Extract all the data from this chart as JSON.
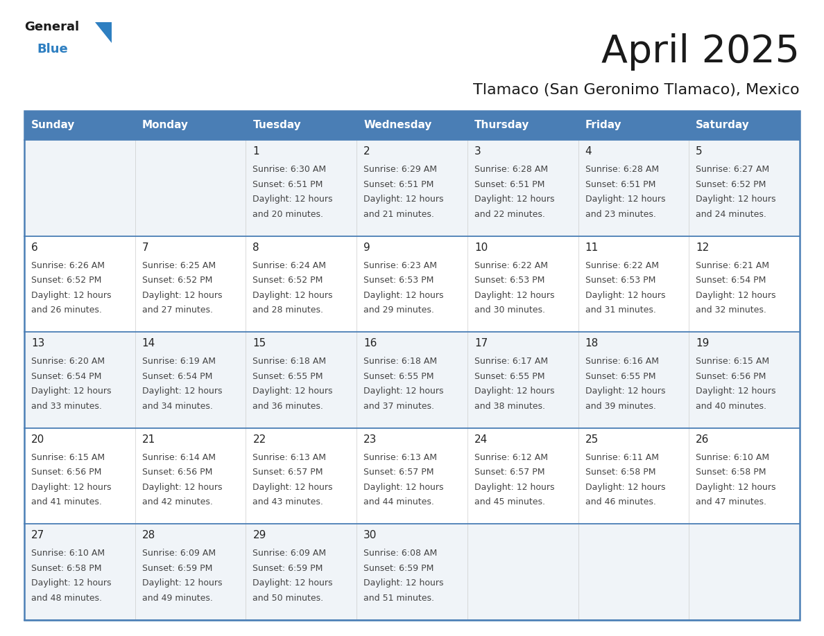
{
  "title": "April 2025",
  "subtitle": "Tlamaco (San Geronimo Tlamaco), Mexico",
  "header_color": "#4a7eb5",
  "header_text_color": "#ffffff",
  "cell_bg_odd": "#f0f4f8",
  "cell_bg_even": "#ffffff",
  "day_number_color": "#222222",
  "text_color": "#444444",
  "line_color": "#4a7eb5",
  "border_color": "#4a7eb5",
  "days_of_week": [
    "Sunday",
    "Monday",
    "Tuesday",
    "Wednesday",
    "Thursday",
    "Friday",
    "Saturday"
  ],
  "logo_color1": "#1a1a1a",
  "logo_color2": "#2e7fc1",
  "logo_triangle_color": "#2e7fc1",
  "calendar_data": [
    [
      {
        "day": "",
        "sunrise": "",
        "sunset": "",
        "daylight": ""
      },
      {
        "day": "",
        "sunrise": "",
        "sunset": "",
        "daylight": ""
      },
      {
        "day": "1",
        "sunrise": "6:30 AM",
        "sunset": "6:51 PM",
        "daylight": "20 minutes."
      },
      {
        "day": "2",
        "sunrise": "6:29 AM",
        "sunset": "6:51 PM",
        "daylight": "21 minutes."
      },
      {
        "day": "3",
        "sunrise": "6:28 AM",
        "sunset": "6:51 PM",
        "daylight": "22 minutes."
      },
      {
        "day": "4",
        "sunrise": "6:28 AM",
        "sunset": "6:51 PM",
        "daylight": "23 minutes."
      },
      {
        "day": "5",
        "sunrise": "6:27 AM",
        "sunset": "6:52 PM",
        "daylight": "24 minutes."
      }
    ],
    [
      {
        "day": "6",
        "sunrise": "6:26 AM",
        "sunset": "6:52 PM",
        "daylight": "26 minutes."
      },
      {
        "day": "7",
        "sunrise": "6:25 AM",
        "sunset": "6:52 PM",
        "daylight": "27 minutes."
      },
      {
        "day": "8",
        "sunrise": "6:24 AM",
        "sunset": "6:52 PM",
        "daylight": "28 minutes."
      },
      {
        "day": "9",
        "sunrise": "6:23 AM",
        "sunset": "6:53 PM",
        "daylight": "29 minutes."
      },
      {
        "day": "10",
        "sunrise": "6:22 AM",
        "sunset": "6:53 PM",
        "daylight": "30 minutes."
      },
      {
        "day": "11",
        "sunrise": "6:22 AM",
        "sunset": "6:53 PM",
        "daylight": "31 minutes."
      },
      {
        "day": "12",
        "sunrise": "6:21 AM",
        "sunset": "6:54 PM",
        "daylight": "32 minutes."
      }
    ],
    [
      {
        "day": "13",
        "sunrise": "6:20 AM",
        "sunset": "6:54 PM",
        "daylight": "33 minutes."
      },
      {
        "day": "14",
        "sunrise": "6:19 AM",
        "sunset": "6:54 PM",
        "daylight": "34 minutes."
      },
      {
        "day": "15",
        "sunrise": "6:18 AM",
        "sunset": "6:55 PM",
        "daylight": "36 minutes."
      },
      {
        "day": "16",
        "sunrise": "6:18 AM",
        "sunset": "6:55 PM",
        "daylight": "37 minutes."
      },
      {
        "day": "17",
        "sunrise": "6:17 AM",
        "sunset": "6:55 PM",
        "daylight": "38 minutes."
      },
      {
        "day": "18",
        "sunrise": "6:16 AM",
        "sunset": "6:55 PM",
        "daylight": "39 minutes."
      },
      {
        "day": "19",
        "sunrise": "6:15 AM",
        "sunset": "6:56 PM",
        "daylight": "40 minutes."
      }
    ],
    [
      {
        "day": "20",
        "sunrise": "6:15 AM",
        "sunset": "6:56 PM",
        "daylight": "41 minutes."
      },
      {
        "day": "21",
        "sunrise": "6:14 AM",
        "sunset": "6:56 PM",
        "daylight": "42 minutes."
      },
      {
        "day": "22",
        "sunrise": "6:13 AM",
        "sunset": "6:57 PM",
        "daylight": "43 minutes."
      },
      {
        "day": "23",
        "sunrise": "6:13 AM",
        "sunset": "6:57 PM",
        "daylight": "44 minutes."
      },
      {
        "day": "24",
        "sunrise": "6:12 AM",
        "sunset": "6:57 PM",
        "daylight": "45 minutes."
      },
      {
        "day": "25",
        "sunrise": "6:11 AM",
        "sunset": "6:58 PM",
        "daylight": "46 minutes."
      },
      {
        "day": "26",
        "sunrise": "6:10 AM",
        "sunset": "6:58 PM",
        "daylight": "47 minutes."
      }
    ],
    [
      {
        "day": "27",
        "sunrise": "6:10 AM",
        "sunset": "6:58 PM",
        "daylight": "48 minutes."
      },
      {
        "day": "28",
        "sunrise": "6:09 AM",
        "sunset": "6:59 PM",
        "daylight": "49 minutes."
      },
      {
        "day": "29",
        "sunrise": "6:09 AM",
        "sunset": "6:59 PM",
        "daylight": "50 minutes."
      },
      {
        "day": "30",
        "sunrise": "6:08 AM",
        "sunset": "6:59 PM",
        "daylight": "51 minutes."
      },
      {
        "day": "",
        "sunrise": "",
        "sunset": "",
        "daylight": ""
      },
      {
        "day": "",
        "sunrise": "",
        "sunset": "",
        "daylight": ""
      },
      {
        "day": "",
        "sunrise": "",
        "sunset": "",
        "daylight": ""
      }
    ]
  ]
}
